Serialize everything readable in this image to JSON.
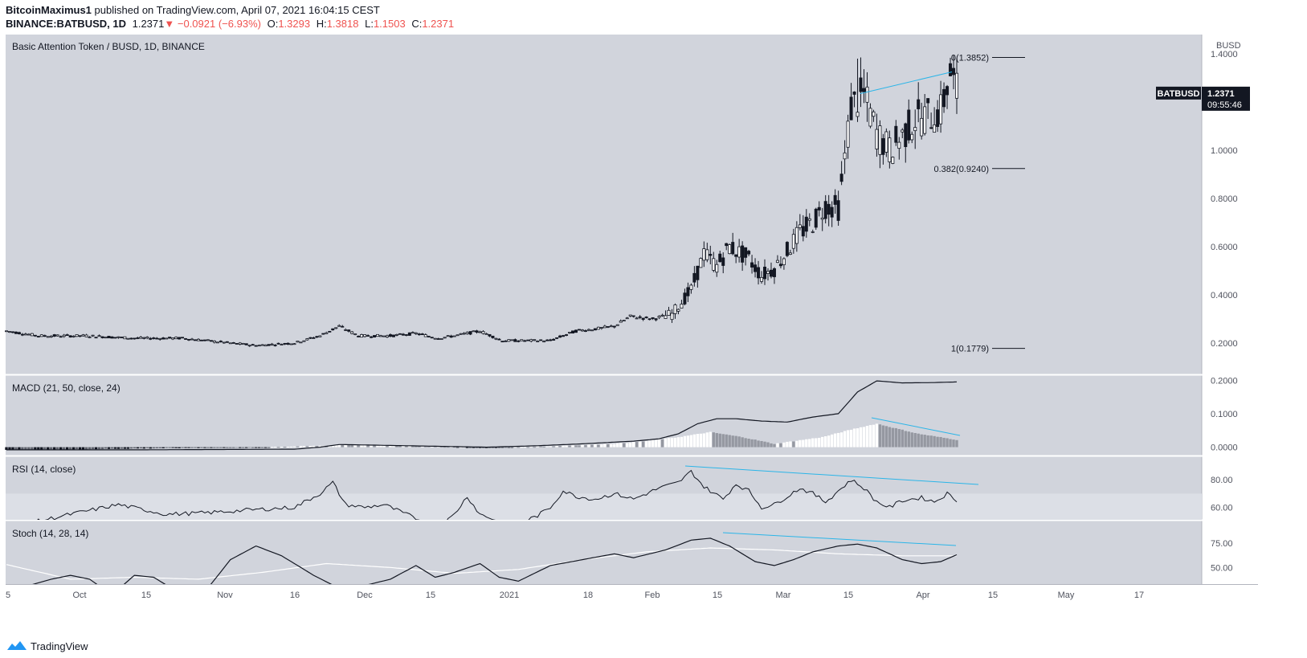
{
  "header": {
    "author": "BitcoinMaximus1",
    "published_text": "published on TradingView.com, April 07, 2021 16:04:15 CEST",
    "symbol": "BINANCE:BATBUSD, 1D",
    "last": "1.2371",
    "change": "−0.0921 (−6.93%)",
    "open_label": "O:",
    "open": "1.3293",
    "high_label": "H:",
    "high": "1.3818",
    "low_label": "L:",
    "low": "1.1503",
    "close_label": "C:",
    "close": "1.2371",
    "down_arrow": "▼"
  },
  "colors": {
    "panel_bg": "#d1d4dc",
    "rsi_band": "#dcdfe6",
    "line": "#131722",
    "accent": "#2bb5e8",
    "down": "#ef5350",
    "price_tag": "#131722"
  },
  "chart_data": [
    {
      "type": "candlestick",
      "title": "Basic Attention Token / BUSD, 1D, BINANCE",
      "currency": "BUSD",
      "y_ticks": [
        "1.4000",
        "1.2000",
        "1.0000",
        "0.8000",
        "0.6000",
        "0.4000",
        "0.2000"
      ],
      "ylim": [
        0.07,
        1.48
      ],
      "x_ticks": [
        "5",
        "Oct",
        "15",
        "Nov",
        "16",
        "Dec",
        "15",
        "2021",
        "18",
        "Feb",
        "15",
        "Mar",
        "15",
        "Apr",
        "15",
        "May",
        "17"
      ],
      "last_price_label": "BATBUSD",
      "last_price": "1.2371",
      "countdown": "09:55:46",
      "fib_levels": [
        {
          "label": "0(1.3852)",
          "value": 1.3852
        },
        {
          "label": "0.382(0.9240)",
          "value": 0.924
        },
        {
          "label": "1(0.1779)",
          "value": 0.1779
        }
      ],
      "trendline": {
        "from": [
          1.235,
          "2021-03-18"
        ],
        "to": [
          1.325,
          "2021-04-06"
        ]
      },
      "anchors": [
        [
          0,
          0.25
        ],
        [
          10,
          0.23
        ],
        [
          25,
          0.23
        ],
        [
          40,
          0.22
        ],
        [
          55,
          0.22
        ],
        [
          70,
          0.2
        ],
        [
          78,
          0.19
        ],
        [
          90,
          0.2
        ],
        [
          98,
          0.23
        ],
        [
          104,
          0.27
        ],
        [
          110,
          0.23
        ],
        [
          120,
          0.23
        ],
        [
          128,
          0.24
        ],
        [
          135,
          0.22
        ],
        [
          140,
          0.23
        ],
        [
          148,
          0.25
        ],
        [
          155,
          0.21
        ],
        [
          162,
          0.21
        ],
        [
          170,
          0.21
        ],
        [
          178,
          0.25
        ],
        [
          185,
          0.26
        ],
        [
          190,
          0.27
        ],
        [
          195,
          0.31
        ],
        [
          202,
          0.3
        ],
        [
          208,
          0.32
        ],
        [
          214,
          0.42
        ],
        [
          218,
          0.57
        ],
        [
          222,
          0.52
        ],
        [
          226,
          0.6
        ],
        [
          232,
          0.55
        ],
        [
          236,
          0.48
        ],
        [
          240,
          0.51
        ],
        [
          244,
          0.58
        ],
        [
          248,
          0.66
        ],
        [
          252,
          0.7
        ],
        [
          256,
          0.77
        ],
        [
          260,
          0.76
        ],
        [
          264,
          1.18
        ],
        [
          268,
          1.23
        ],
        [
          272,
          1.07
        ],
        [
          276,
          1.0
        ],
        [
          280,
          1.06
        ],
        [
          284,
          1.13
        ],
        [
          288,
          1.14
        ],
        [
          292,
          1.16
        ],
        [
          295,
          1.32
        ],
        [
          297,
          1.24
        ]
      ]
    },
    {
      "type": "macd",
      "title": "MACD (21, 50, close, 24)",
      "y_ticks": [
        "0.2000",
        "0.1000",
        "0.0000"
      ],
      "ylim": [
        -0.025,
        0.215
      ],
      "macd_anchors": [
        [
          0,
          -0.008
        ],
        [
          40,
          -0.008
        ],
        [
          90,
          -0.006
        ],
        [
          98,
          0.0
        ],
        [
          104,
          0.008
        ],
        [
          150,
          0.0
        ],
        [
          165,
          0.004
        ],
        [
          180,
          0.01
        ],
        [
          196,
          0.018
        ],
        [
          204,
          0.025
        ],
        [
          210,
          0.04
        ],
        [
          216,
          0.07
        ],
        [
          222,
          0.085
        ],
        [
          228,
          0.085
        ],
        [
          236,
          0.078
        ],
        [
          244,
          0.075
        ],
        [
          252,
          0.09
        ],
        [
          260,
          0.1
        ],
        [
          266,
          0.165
        ],
        [
          272,
          0.198
        ],
        [
          280,
          0.192
        ],
        [
          290,
          0.193
        ],
        [
          297,
          0.195
        ]
      ],
      "hist_anchors": [
        [
          0,
          -0.008
        ],
        [
          20,
          -0.007
        ],
        [
          40,
          -0.004
        ],
        [
          60,
          -0.002
        ],
        [
          80,
          0.0
        ],
        [
          98,
          0.004
        ],
        [
          106,
          0.008
        ],
        [
          130,
          0.004
        ],
        [
          150,
          -0.002
        ],
        [
          170,
          0.003
        ],
        [
          190,
          0.01
        ],
        [
          200,
          0.018
        ],
        [
          210,
          0.03
        ],
        [
          220,
          0.045
        ],
        [
          230,
          0.03
        ],
        [
          240,
          0.01
        ],
        [
          255,
          0.03
        ],
        [
          265,
          0.055
        ],
        [
          272,
          0.07
        ],
        [
          285,
          0.04
        ],
        [
          297,
          0.022
        ]
      ]
    },
    {
      "type": "line",
      "title": "RSI (14, close)",
      "y_ticks": [
        "80.00",
        "60.00"
      ],
      "ylim": [
        51,
        97
      ],
      "band": [
        60,
        70
      ],
      "anchors": [
        [
          0,
          45
        ],
        [
          20,
          55
        ],
        [
          35,
          62
        ],
        [
          50,
          55
        ],
        [
          62,
          56
        ],
        [
          75,
          58
        ],
        [
          90,
          60
        ],
        [
          98,
          70
        ],
        [
          102,
          78
        ],
        [
          106,
          62
        ],
        [
          112,
          60
        ],
        [
          118,
          62
        ],
        [
          122,
          58
        ],
        [
          130,
          50
        ],
        [
          135,
          45
        ],
        [
          140,
          55
        ],
        [
          144,
          68
        ],
        [
          148,
          55
        ],
        [
          154,
          50
        ],
        [
          160,
          48
        ],
        [
          166,
          54
        ],
        [
          170,
          60
        ],
        [
          174,
          72
        ],
        [
          178,
          68
        ],
        [
          184,
          66
        ],
        [
          190,
          70
        ],
        [
          196,
          66
        ],
        [
          204,
          74
        ],
        [
          210,
          78
        ],
        [
          214,
          86
        ],
        [
          218,
          75
        ],
        [
          224,
          66
        ],
        [
          228,
          77
        ],
        [
          232,
          72
        ],
        [
          236,
          60
        ],
        [
          240,
          62
        ],
        [
          244,
          68
        ],
        [
          248,
          74
        ],
        [
          252,
          70
        ],
        [
          256,
          64
        ],
        [
          260,
          72
        ],
        [
          264,
          80
        ],
        [
          268,
          74
        ],
        [
          272,
          64
        ],
        [
          276,
          60
        ],
        [
          280,
          65
        ],
        [
          286,
          67
        ],
        [
          290,
          64
        ],
        [
          294,
          70
        ],
        [
          297,
          65
        ]
      ]
    },
    {
      "type": "line",
      "title": "Stoch (14, 28, 14)",
      "y_ticks": [
        "75.00",
        "50.00"
      ],
      "ylim": [
        33,
        98
      ],
      "k_anchors": [
        [
          0,
          25
        ],
        [
          14,
          38
        ],
        [
          20,
          42
        ],
        [
          26,
          38
        ],
        [
          33,
          22
        ],
        [
          40,
          42
        ],
        [
          46,
          40
        ],
        [
          52,
          28
        ],
        [
          62,
          25
        ],
        [
          70,
          58
        ],
        [
          78,
          72
        ],
        [
          86,
          62
        ],
        [
          96,
          42
        ],
        [
          102,
          32
        ],
        [
          110,
          30
        ],
        [
          120,
          38
        ],
        [
          128,
          52
        ],
        [
          134,
          40
        ],
        [
          140,
          45
        ],
        [
          148,
          54
        ],
        [
          154,
          40
        ],
        [
          160,
          36
        ],
        [
          170,
          52
        ],
        [
          180,
          58
        ],
        [
          190,
          64
        ],
        [
          196,
          60
        ],
        [
          206,
          68
        ],
        [
          214,
          78
        ],
        [
          220,
          80
        ],
        [
          226,
          72
        ],
        [
          234,
          56
        ],
        [
          240,
          52
        ],
        [
          246,
          58
        ],
        [
          252,
          66
        ],
        [
          260,
          72
        ],
        [
          266,
          74
        ],
        [
          272,
          70
        ],
        [
          280,
          58
        ],
        [
          286,
          54
        ],
        [
          292,
          56
        ],
        [
          297,
          63
        ]
      ],
      "d_anchors": [
        [
          0,
          53
        ],
        [
          20,
          38
        ],
        [
          40,
          40
        ],
        [
          60,
          38
        ],
        [
          80,
          45
        ],
        [
          100,
          54
        ],
        [
          120,
          50
        ],
        [
          140,
          44
        ],
        [
          160,
          48
        ],
        [
          180,
          58
        ],
        [
          200,
          66
        ],
        [
          220,
          70
        ],
        [
          240,
          68
        ],
        [
          260,
          64
        ],
        [
          280,
          62
        ],
        [
          297,
          62
        ]
      ],
      "trendline": {
        "from": [
          80,
          "2021-02-13"
        ],
        "to": [
          72,
          "2021-04-07"
        ]
      }
    }
  ],
  "footer": {
    "brand": "TradingView"
  }
}
